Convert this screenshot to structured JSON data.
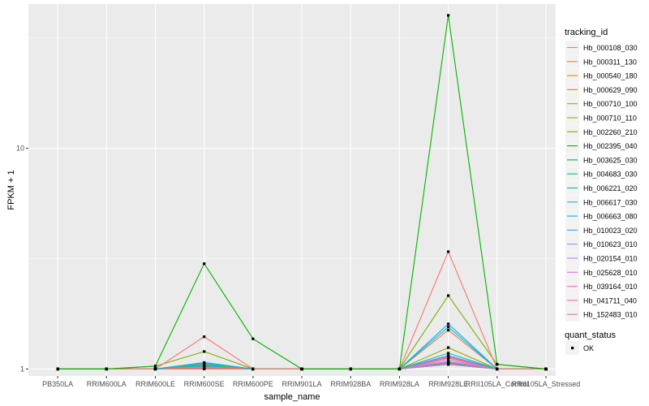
{
  "chart_data": {
    "type": "line",
    "xlabel": "sample_name",
    "ylabel": "FPKM + 1",
    "y_scale": "log10",
    "ylim": [
      0.93,
      45
    ],
    "y_ticks": [
      {
        "value": 1,
        "label": "1"
      },
      {
        "value": 10,
        "label": "10"
      }
    ],
    "grid": true,
    "legend_position": "right",
    "categories": [
      "PB350LA",
      "RRIM600LA",
      "RRIM600LE",
      "RRIM600SE",
      "RRIM600PE",
      "RRIM901LA",
      "RRIM928BA",
      "RRIM928LA",
      "RRIM928LE",
      "RRII105LA_Control",
      "RRII105LA_Stressed"
    ],
    "color_legend_title": "tracking_id",
    "shape_legend_title": "quant_status",
    "shape_legend_items": [
      {
        "label": "OK",
        "shape": "square"
      }
    ],
    "series": [
      {
        "name": "Hb_000108_030",
        "color": "#F8766D",
        "values": [
          1,
          1,
          1,
          1.4,
          1,
          1,
          1,
          1,
          3.4,
          1,
          1
        ]
      },
      {
        "name": "Hb_000311_130",
        "color": "#EE8044",
        "values": [
          1,
          1,
          1,
          1.02,
          1,
          1,
          1,
          1,
          1.5,
          1,
          1
        ]
      },
      {
        "name": "Hb_000540_180",
        "color": "#DE8C00",
        "values": [
          1,
          1,
          1,
          1.02,
          1,
          1,
          1,
          1,
          1.12,
          1,
          1
        ]
      },
      {
        "name": "Hb_000629_090",
        "color": "#CD9600",
        "values": [
          1,
          1,
          1,
          1,
          1,
          1,
          1,
          1,
          1.05,
          1,
          1
        ]
      },
      {
        "name": "Hb_000710_100",
        "color": "#B79F00",
        "values": [
          1,
          1,
          1,
          1.03,
          1,
          1,
          1,
          1,
          1.08,
          1,
          1
        ]
      },
      {
        "name": "Hb_000710_110",
        "color": "#9EA700",
        "values": [
          1,
          1,
          1,
          1.05,
          1,
          1,
          1,
          1,
          1.25,
          1,
          1
        ]
      },
      {
        "name": "Hb_002260_210",
        "color": "#7CAE00",
        "values": [
          1,
          1,
          1.03,
          1.2,
          1,
          1,
          1,
          1,
          2.15,
          1.05,
          1
        ]
      },
      {
        "name": "Hb_002395_040",
        "color": "#00B500",
        "values": [
          1,
          1,
          1.03,
          3.0,
          1.37,
          1,
          1,
          1,
          40,
          1.05,
          1
        ]
      },
      {
        "name": "Hb_003625_030",
        "color": "#00BA38",
        "values": [
          1,
          1,
          1,
          1.02,
          1,
          1,
          1,
          1,
          1.05,
          1,
          1
        ]
      },
      {
        "name": "Hb_004683_030",
        "color": "#00BF7D",
        "values": [
          1,
          1,
          1,
          1.03,
          1,
          1,
          1,
          1,
          1.07,
          1,
          1
        ]
      },
      {
        "name": "Hb_006221_020",
        "color": "#00C0AF",
        "values": [
          1,
          1,
          1,
          1.04,
          1,
          1,
          1,
          1,
          1.18,
          1,
          1
        ]
      },
      {
        "name": "Hb_006617_030",
        "color": "#00BCD8",
        "values": [
          1,
          1,
          1,
          1.06,
          1,
          1,
          1,
          1,
          1.55,
          1,
          1
        ]
      },
      {
        "name": "Hb_006663_080",
        "color": "#00B0F6",
        "values": [
          1,
          1,
          1,
          1.07,
          1,
          1,
          1,
          1,
          1.6,
          1,
          1
        ]
      },
      {
        "name": "Hb_010023_020",
        "color": "#35A2FF",
        "values": [
          1,
          1,
          1,
          1.03,
          1,
          1,
          1,
          1,
          1.15,
          1,
          1
        ]
      },
      {
        "name": "Hb_010623_010",
        "color": "#9590FF",
        "values": [
          1,
          1,
          1,
          1.02,
          1,
          1,
          1,
          1,
          1.05,
          1,
          1
        ]
      },
      {
        "name": "Hb_020154_010",
        "color": "#C77CFF",
        "values": [
          1,
          1,
          1,
          1.01,
          1,
          1,
          1,
          1,
          1.08,
          1,
          1
        ]
      },
      {
        "name": "Hb_025628_010",
        "color": "#E76BF3",
        "values": [
          1,
          1,
          1,
          1.01,
          1,
          1,
          1,
          1,
          1.1,
          1,
          1
        ]
      },
      {
        "name": "Hb_039164_010",
        "color": "#FA62DB",
        "values": [
          1,
          1,
          1,
          1.02,
          1,
          1,
          1,
          1,
          1.13,
          1,
          1
        ]
      },
      {
        "name": "Hb_041711_040",
        "color": "#FF62BC",
        "values": [
          1,
          1,
          1,
          1.01,
          1,
          1,
          1,
          1,
          1.14,
          1,
          1
        ]
      },
      {
        "name": "Hb_152483_010",
        "color": "#FF6C91",
        "values": [
          1,
          1,
          1,
          1.01,
          1,
          1,
          1,
          1,
          1.06,
          1,
          1
        ]
      }
    ]
  }
}
